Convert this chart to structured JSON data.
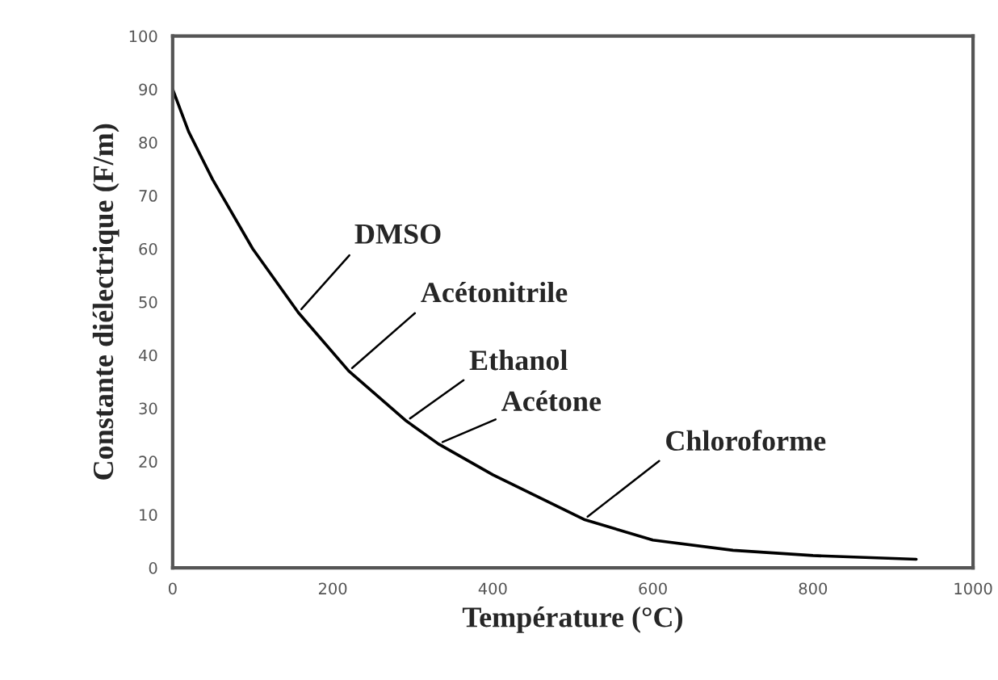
{
  "chart_data": {
    "type": "line",
    "xlabel": "Température (°C)",
    "ylabel": "Constante diélectrique (F/m)",
    "x": [
      0,
      20,
      50,
      100,
      157,
      220,
      292,
      332,
      400,
      514,
      600,
      700,
      800,
      929
    ],
    "series": [
      {
        "color": "#000000",
        "values": [
          90,
          82,
          73,
          60,
          48,
          37,
          27.6,
          23.3,
          17.5,
          9.1,
          5.2,
          3.3,
          2.3,
          1.6
        ]
      }
    ],
    "xlim": [
      0,
      1000
    ],
    "xticks": [
      0,
      200,
      400,
      600,
      800,
      1000
    ],
    "ylim": [
      0,
      100
    ],
    "yticks": [
      0,
      10,
      20,
      30,
      40,
      50,
      60,
      70,
      80,
      90,
      100
    ],
    "grid": false,
    "legend": false,
    "marker": "none",
    "line_style": "solid",
    "annotations": [
      {
        "text": "DMSO",
        "x": 157,
        "y": 48
      },
      {
        "text": "Acétonitrile",
        "x": 220,
        "y": 37
      },
      {
        "text": "Ethanol",
        "x": 292,
        "y": 27.6
      },
      {
        "text": "Acétone",
        "x": 332,
        "y": 23.3
      },
      {
        "text": "Chloroforme",
        "x": 514,
        "y": 9.1
      }
    ]
  }
}
